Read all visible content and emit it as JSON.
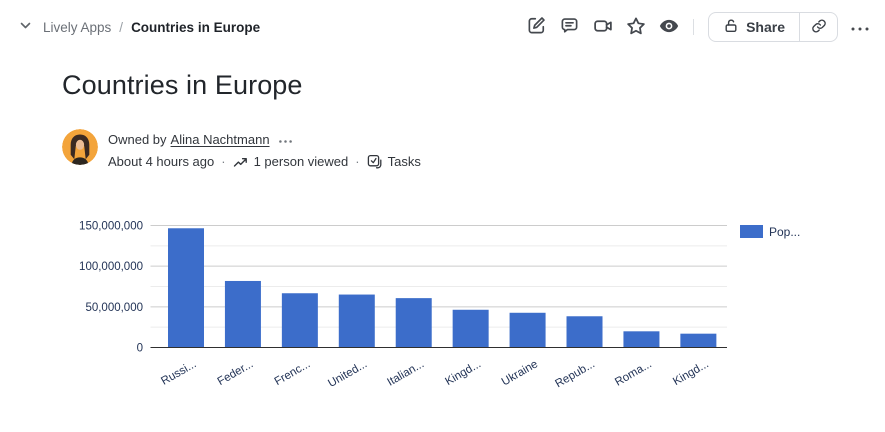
{
  "breadcrumb": {
    "parent": "Lively Apps",
    "separator": "/",
    "current": "Countries in Europe"
  },
  "topbar": {
    "share_label": "Share"
  },
  "page": {
    "title": "Countries in Europe",
    "meta": {
      "owned_by_prefix": "Owned by",
      "owner_name": "Alina Nachtmann",
      "last_edited": "About 4 hours ago",
      "views": "1 person viewed",
      "tasks_label": "Tasks",
      "dot": "·"
    }
  },
  "chart_data": {
    "type": "bar",
    "title": "",
    "xlabel": "",
    "ylabel": "",
    "categories": [
      "Russi...",
      "Feder...",
      "Frenc...",
      "United...",
      "Italian...",
      "Kingd...",
      "Ukraine",
      "Repub...",
      "Roma...",
      "Kingd..."
    ],
    "series": [
      {
        "name": "Pop...",
        "values": [
          146600000,
          81800000,
          66700000,
          65100000,
          60700000,
          46400000,
          42700000,
          38400000,
          19900000,
          17000000
        ]
      }
    ],
    "ylim": [
      0,
      150000000
    ],
    "yticks": [
      0,
      50000000,
      100000000,
      150000000
    ],
    "ytick_labels": [
      "0",
      "50,000,000",
      "100,000,000",
      "150,000,000"
    ],
    "minor_tick_step": 25000000,
    "grid": true,
    "legend_position": "top-right",
    "bar_color": "#3c6dca",
    "axis_text_color": "#233457",
    "major_grid_color": "#cccccc",
    "minor_grid_color": "#ececec",
    "baseline_color": "#2f2f2f"
  }
}
